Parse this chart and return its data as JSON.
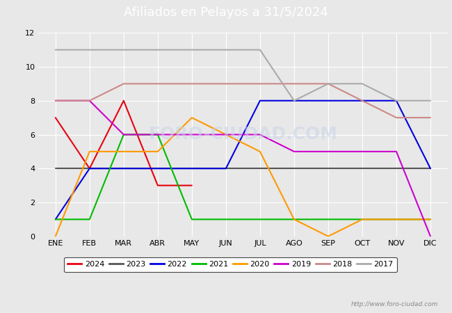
{
  "title": "Afiliados en Pelayos a 31/5/2024",
  "months": [
    "ENE",
    "FEB",
    "MAR",
    "ABR",
    "MAY",
    "JUN",
    "JUL",
    "AGO",
    "SEP",
    "OCT",
    "NOV",
    "DIC"
  ],
  "ylim": [
    0,
    12
  ],
  "yticks": [
    0,
    2,
    4,
    6,
    8,
    10,
    12
  ],
  "series": {
    "2024": {
      "color": "#e8000e",
      "values": [
        7,
        4,
        8,
        3,
        3,
        null,
        null,
        null,
        null,
        null,
        null,
        null
      ]
    },
    "2023": {
      "color": "#555555",
      "values": [
        4,
        4,
        4,
        4,
        4,
        4,
        4,
        4,
        4,
        4,
        4,
        4
      ]
    },
    "2022": {
      "color": "#0000dd",
      "values": [
        1,
        4,
        4,
        4,
        4,
        4,
        8,
        8,
        8,
        8,
        8,
        4
      ]
    },
    "2021": {
      "color": "#00bb00",
      "values": [
        1,
        1,
        6,
        6,
        1,
        1,
        1,
        1,
        1,
        1,
        1,
        1
      ]
    },
    "2020": {
      "color": "#ff9900",
      "values": [
        0,
        5,
        5,
        5,
        7,
        6,
        5,
        1,
        0,
        1,
        1,
        1
      ]
    },
    "2019": {
      "color": "#cc00cc",
      "values": [
        8,
        8,
        6,
        6,
        6,
        6,
        6,
        5,
        5,
        5,
        5,
        0
      ]
    },
    "2018": {
      "color": "#cc8888",
      "values": [
        8,
        8,
        9,
        9,
        9,
        9,
        9,
        9,
        9,
        8,
        7,
        7
      ]
    },
    "2017": {
      "color": "#aaaaaa",
      "values": [
        11,
        11,
        11,
        11,
        11,
        11,
        11,
        8,
        9,
        9,
        8,
        8
      ]
    }
  },
  "legend_order": [
    "2024",
    "2023",
    "2022",
    "2021",
    "2020",
    "2019",
    "2018",
    "2017"
  ],
  "watermark": "http://www.foro-ciudad.com",
  "fig_bg": "#e8e8e8",
  "plot_bg": "#e8e8e8",
  "header_bg": "#5b9bd5",
  "header_text_color": "#ffffff",
  "grid_color": "#ffffff",
  "title_fontsize": 13,
  "tick_fontsize": 8,
  "linewidth": 1.5
}
